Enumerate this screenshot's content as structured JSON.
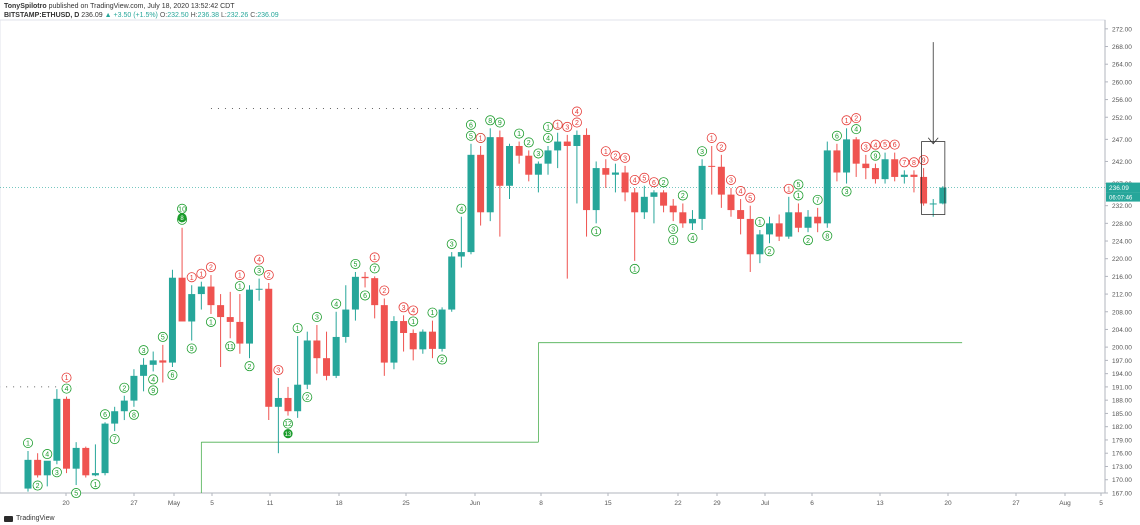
{
  "header": {
    "author": "TonySpilotro",
    "published": "published on TradingView.com, July 18, 2020 13:52:42 CDT",
    "symbol": "BITSTAMP:ETHUSD, D",
    "last": "236.09",
    "change": "+3.50 (+1.5%)",
    "o_label": "O:",
    "o_val": "232.50",
    "h_label": "H:",
    "h_val": "236.38",
    "l_label": "L:",
    "l_val": "232.26",
    "c_label": "C:",
    "c_val": "236.09"
  },
  "footer": {
    "brand": "TradingView"
  },
  "colors": {
    "up": "#26a69a",
    "down": "#ef5350",
    "buy_setup": "#1b9c2c",
    "sell_setup": "#e53935",
    "line": "#4caf50"
  },
  "chart_data": {
    "type": "candlestick",
    "title": "BITSTAMP:ETHUSD, D",
    "ylim": [
      167,
      274
    ],
    "y_ticks": [
      "272.00",
      "268.00",
      "264.00",
      "260.00",
      "256.00",
      "252.00",
      "247.00",
      "242.00",
      "237.00",
      "232.00",
      "228.00",
      "224.00",
      "220.00",
      "216.00",
      "212.00",
      "208.00",
      "204.00",
      "200.00",
      "197.00",
      "194.00",
      "191.00",
      "188.00",
      "185.00",
      "182.00",
      "179.00",
      "176.00",
      "173.00",
      "170.00",
      "167.00"
    ],
    "x_ticks": [
      "20",
      "27",
      "May",
      "5",
      "11",
      "18",
      "25",
      "Jun",
      "8",
      "15",
      "22",
      "29",
      "Jul",
      "6",
      "13",
      "20",
      "27",
      "Aug",
      "5"
    ],
    "price_labels": {
      "last": "236.09",
      "countdown": "06:07:46"
    },
    "candles": [
      {
        "o": 168.0,
        "h": 176.5,
        "l": 167.3,
        "c": 174.5
      },
      {
        "o": 174.5,
        "h": 176.0,
        "l": 170.5,
        "c": 171.0
      },
      {
        "o": 171.0,
        "h": 174.0,
        "l": 168.5,
        "c": 174.3
      },
      {
        "o": 174.3,
        "h": 190.5,
        "l": 173.5,
        "c": 188.3
      },
      {
        "o": 188.3,
        "h": 188.8,
        "l": 171.5,
        "c": 172.5
      },
      {
        "o": 172.5,
        "h": 178.5,
        "l": 168.8,
        "c": 177.2
      },
      {
        "o": 177.2,
        "h": 177.5,
        "l": 170.5,
        "c": 171.0
      },
      {
        "o": 171.0,
        "h": 178.0,
        "l": 170.8,
        "c": 171.5
      },
      {
        "o": 171.5,
        "h": 183.0,
        "l": 171.0,
        "c": 182.7
      },
      {
        "o": 182.7,
        "h": 186.5,
        "l": 181.0,
        "c": 185.5
      },
      {
        "o": 185.5,
        "h": 189.0,
        "l": 183.5,
        "c": 187.9
      },
      {
        "o": 187.9,
        "h": 195.0,
        "l": 186.5,
        "c": 193.5
      },
      {
        "o": 193.5,
        "h": 197.5,
        "l": 190.0,
        "c": 196.0
      },
      {
        "o": 196.0,
        "h": 199.0,
        "l": 194.5,
        "c": 197.0
      },
      {
        "o": 197.0,
        "h": 200.5,
        "l": 192.0,
        "c": 196.5
      },
      {
        "o": 196.5,
        "h": 217.5,
        "l": 195.5,
        "c": 215.7
      },
      {
        "o": 215.7,
        "h": 227.0,
        "l": 206.5,
        "c": 205.8
      },
      {
        "o": 205.8,
        "h": 214.0,
        "l": 201.5,
        "c": 212.0
      },
      {
        "o": 212.0,
        "h": 214.8,
        "l": 208.5,
        "c": 213.7
      },
      {
        "o": 213.7,
        "h": 216.3,
        "l": 207.5,
        "c": 209.5
      },
      {
        "o": 209.5,
        "h": 212.0,
        "l": 195.5,
        "c": 206.8
      },
      {
        "o": 206.8,
        "h": 212.5,
        "l": 202.0,
        "c": 205.7
      },
      {
        "o": 205.7,
        "h": 212.0,
        "l": 198.5,
        "c": 200.8
      },
      {
        "o": 200.8,
        "h": 214.0,
        "l": 197.5,
        "c": 213.0
      },
      {
        "o": 213.0,
        "h": 215.5,
        "l": 210.5,
        "c": 213.2
      },
      {
        "o": 213.2,
        "h": 214.5,
        "l": 183.5,
        "c": 186.5
      },
      {
        "o": 186.5,
        "h": 193.0,
        "l": 176.0,
        "c": 188.5
      },
      {
        "o": 188.5,
        "h": 191.0,
        "l": 184.5,
        "c": 185.5
      },
      {
        "o": 185.5,
        "h": 202.5,
        "l": 184.0,
        "c": 191.5
      },
      {
        "o": 191.5,
        "h": 203.5,
        "l": 190.5,
        "c": 201.5
      },
      {
        "o": 201.5,
        "h": 205.0,
        "l": 194.0,
        "c": 197.5
      },
      {
        "o": 197.5,
        "h": 203.5,
        "l": 192.5,
        "c": 193.5
      },
      {
        "o": 193.5,
        "h": 208.0,
        "l": 193.0,
        "c": 202.3
      },
      {
        "o": 202.3,
        "h": 214.0,
        "l": 201.0,
        "c": 208.5
      },
      {
        "o": 208.5,
        "h": 217.0,
        "l": 206.0,
        "c": 215.9
      },
      {
        "o": 215.9,
        "h": 217.0,
        "l": 213.5,
        "c": 215.6
      },
      {
        "o": 215.6,
        "h": 216.0,
        "l": 206.5,
        "c": 209.5
      },
      {
        "o": 209.5,
        "h": 211.0,
        "l": 193.5,
        "c": 196.5
      },
      {
        "o": 196.5,
        "h": 207.0,
        "l": 195.0,
        "c": 205.9
      },
      {
        "o": 205.9,
        "h": 207.2,
        "l": 199.0,
        "c": 203.2
      },
      {
        "o": 203.2,
        "h": 204.0,
        "l": 197.0,
        "c": 199.5
      },
      {
        "o": 199.5,
        "h": 204.0,
        "l": 198.5,
        "c": 203.5
      },
      {
        "o": 203.5,
        "h": 206.0,
        "l": 197.5,
        "c": 199.6
      },
      {
        "o": 199.6,
        "h": 209.0,
        "l": 199.0,
        "c": 208.5
      },
      {
        "o": 208.5,
        "h": 221.5,
        "l": 208.0,
        "c": 220.5
      },
      {
        "o": 220.5,
        "h": 229.5,
        "l": 218.0,
        "c": 221.5
      },
      {
        "o": 221.5,
        "h": 246.0,
        "l": 221.0,
        "c": 243.5
      },
      {
        "o": 243.5,
        "h": 245.5,
        "l": 227.5,
        "c": 230.5
      },
      {
        "o": 230.5,
        "h": 249.5,
        "l": 228.5,
        "c": 247.5
      },
      {
        "o": 247.5,
        "h": 249.0,
        "l": 225.0,
        "c": 236.5
      },
      {
        "o": 236.5,
        "h": 246.0,
        "l": 233.5,
        "c": 245.5
      },
      {
        "o": 245.5,
        "h": 246.5,
        "l": 241.5,
        "c": 243.3
      },
      {
        "o": 243.3,
        "h": 244.5,
        "l": 237.5,
        "c": 239.0
      },
      {
        "o": 239.0,
        "h": 242.0,
        "l": 235.0,
        "c": 241.5
      },
      {
        "o": 241.5,
        "h": 245.5,
        "l": 239.0,
        "c": 244.5
      },
      {
        "o": 244.5,
        "h": 248.5,
        "l": 240.5,
        "c": 246.5
      },
      {
        "o": 246.5,
        "h": 248.0,
        "l": 215.5,
        "c": 245.5
      },
      {
        "o": 245.5,
        "h": 249.0,
        "l": 232.5,
        "c": 248.0
      },
      {
        "o": 248.0,
        "h": 249.5,
        "l": 225.0,
        "c": 231.0
      },
      {
        "o": 231.0,
        "h": 242.0,
        "l": 228.0,
        "c": 240.5
      },
      {
        "o": 240.5,
        "h": 242.5,
        "l": 236.0,
        "c": 239.0
      },
      {
        "o": 239.0,
        "h": 241.5,
        "l": 235.0,
        "c": 239.5
      },
      {
        "o": 239.5,
        "h": 241.0,
        "l": 233.0,
        "c": 235.0
      },
      {
        "o": 235.0,
        "h": 236.0,
        "l": 219.5,
        "c": 230.5
      },
      {
        "o": 230.5,
        "h": 236.5,
        "l": 229.0,
        "c": 234.0
      },
      {
        "o": 234.0,
        "h": 235.5,
        "l": 228.0,
        "c": 235.0
      },
      {
        "o": 235.0,
        "h": 235.5,
        "l": 230.5,
        "c": 232.0
      },
      {
        "o": 232.0,
        "h": 233.5,
        "l": 228.5,
        "c": 230.5
      },
      {
        "o": 230.5,
        "h": 232.5,
        "l": 227.0,
        "c": 228.0
      },
      {
        "o": 228.0,
        "h": 231.0,
        "l": 226.5,
        "c": 229.0
      },
      {
        "o": 229.0,
        "h": 242.5,
        "l": 226.5,
        "c": 241.0
      },
      {
        "o": 241.0,
        "h": 245.5,
        "l": 234.5,
        "c": 240.8
      },
      {
        "o": 240.8,
        "h": 243.5,
        "l": 231.5,
        "c": 234.5
      },
      {
        "o": 234.5,
        "h": 236.0,
        "l": 229.5,
        "c": 231.0
      },
      {
        "o": 231.0,
        "h": 233.5,
        "l": 225.5,
        "c": 229.0
      },
      {
        "o": 229.0,
        "h": 232.0,
        "l": 217.0,
        "c": 221.0
      },
      {
        "o": 221.0,
        "h": 226.5,
        "l": 219.0,
        "c": 225.5
      },
      {
        "o": 225.5,
        "h": 229.5,
        "l": 223.5,
        "c": 228.0
      },
      {
        "o": 228.0,
        "h": 230.0,
        "l": 224.0,
        "c": 225.0
      },
      {
        "o": 225.0,
        "h": 234.0,
        "l": 224.5,
        "c": 230.5
      },
      {
        "o": 230.5,
        "h": 232.5,
        "l": 226.0,
        "c": 227.0
      },
      {
        "o": 227.0,
        "h": 231.0,
        "l": 226.0,
        "c": 229.5
      },
      {
        "o": 229.5,
        "h": 231.5,
        "l": 226.0,
        "c": 228.0
      },
      {
        "o": 228.0,
        "h": 246.5,
        "l": 227.0,
        "c": 244.5
      },
      {
        "o": 244.5,
        "h": 246.0,
        "l": 237.5,
        "c": 239.5
      },
      {
        "o": 239.5,
        "h": 249.5,
        "l": 237.0,
        "c": 247.0
      },
      {
        "o": 247.0,
        "h": 247.5,
        "l": 238.5,
        "c": 241.5
      },
      {
        "o": 241.5,
        "h": 243.5,
        "l": 238.0,
        "c": 240.5
      },
      {
        "o": 240.5,
        "h": 241.5,
        "l": 237.0,
        "c": 238.0
      },
      {
        "o": 238.0,
        "h": 244.0,
        "l": 237.0,
        "c": 242.5
      },
      {
        "o": 242.5,
        "h": 244.0,
        "l": 237.5,
        "c": 238.5
      },
      {
        "o": 238.5,
        "h": 240.0,
        "l": 237.0,
        "c": 239.0
      },
      {
        "o": 239.0,
        "h": 240.0,
        "l": 235.0,
        "c": 238.5
      },
      {
        "o": 238.5,
        "h": 240.5,
        "l": 232.0,
        "c": 232.5
      },
      {
        "o": 232.5,
        "h": 233.5,
        "l": 229.5,
        "c": 232.5
      },
      {
        "o": 232.5,
        "h": 236.4,
        "l": 232.3,
        "c": 236.1
      }
    ],
    "td_sequential": {
      "buy": [
        {
          "i": 0,
          "label": "1"
        },
        {
          "i": 1,
          "label": "2"
        },
        {
          "i": 2,
          "label": "4"
        },
        {
          "i": 3,
          "label": "3"
        },
        {
          "i": 4,
          "label": "4"
        },
        {
          "i": 5,
          "label": "5"
        },
        {
          "i": 7,
          "label": "1"
        },
        {
          "i": 8,
          "label": "6"
        },
        {
          "i": 9,
          "label": "7"
        },
        {
          "i": 10,
          "label": "2"
        },
        {
          "i": 11,
          "label": "8"
        },
        {
          "i": 12,
          "label": "3"
        },
        {
          "i": 13,
          "label": "4"
        },
        {
          "i": 14,
          "label": "5"
        },
        {
          "i": 13,
          "label": "9"
        },
        {
          "i": 15,
          "label": "6"
        },
        {
          "i": 16,
          "label": "7"
        },
        {
          "i": 16,
          "label": "10"
        },
        {
          "i": 17,
          "label": "9"
        },
        {
          "i": 19,
          "label": "1"
        },
        {
          "i": 21,
          "label": "11"
        },
        {
          "i": 22,
          "label": "1"
        },
        {
          "i": 23,
          "label": "2"
        },
        {
          "i": 24,
          "label": "3"
        },
        {
          "i": 27,
          "label": "12"
        },
        {
          "i": 28,
          "label": "1"
        },
        {
          "i": 29,
          "label": "2"
        },
        {
          "i": 30,
          "label": "3"
        },
        {
          "i": 32,
          "label": "4"
        },
        {
          "i": 34,
          "label": "5"
        },
        {
          "i": 35,
          "label": "6"
        },
        {
          "i": 36,
          "label": "7"
        },
        {
          "i": 40,
          "label": "1"
        },
        {
          "i": 42,
          "label": "1"
        },
        {
          "i": 43,
          "label": "2"
        },
        {
          "i": 44,
          "label": "3"
        },
        {
          "i": 45,
          "label": "4"
        },
        {
          "i": 46,
          "label": "5"
        },
        {
          "i": 46,
          "label": "6"
        },
        {
          "i": 47,
          "label": "7"
        },
        {
          "i": 48,
          "label": "8"
        },
        {
          "i": 49,
          "label": "9"
        },
        {
          "i": 51,
          "label": "1"
        },
        {
          "i": 52,
          "label": "2"
        },
        {
          "i": 53,
          "label": "3"
        },
        {
          "i": 54,
          "label": "4"
        },
        {
          "i": 54,
          "label": "1"
        },
        {
          "i": 55,
          "label": "2"
        },
        {
          "i": 59,
          "label": "1"
        },
        {
          "i": 63,
          "label": "1"
        },
        {
          "i": 66,
          "label": "2"
        },
        {
          "i": 67,
          "label": "3"
        },
        {
          "i": 67,
          "label": "1"
        },
        {
          "i": 68,
          "label": "2"
        },
        {
          "i": 69,
          "label": "4"
        },
        {
          "i": 70,
          "label": "3"
        },
        {
          "i": 76,
          "label": "1"
        },
        {
          "i": 77,
          "label": "2"
        },
        {
          "i": 80,
          "label": "1"
        },
        {
          "i": 81,
          "label": "2"
        },
        {
          "i": 82,
          "label": "7"
        },
        {
          "i": 83,
          "label": "8"
        },
        {
          "i": 85,
          "label": "3"
        },
        {
          "i": 86,
          "label": "4"
        },
        {
          "i": 80,
          "label": "5"
        },
        {
          "i": 84,
          "label": "6"
        },
        {
          "i": 88,
          "label": "9"
        }
      ],
      "sell": [
        {
          "i": 4,
          "label": "1"
        },
        {
          "i": 17,
          "label": "1"
        },
        {
          "i": 18,
          "label": "1"
        },
        {
          "i": 19,
          "label": "2"
        },
        {
          "i": 22,
          "label": "1"
        },
        {
          "i": 25,
          "label": "2"
        },
        {
          "i": 26,
          "label": "3"
        },
        {
          "i": 24,
          "label": "4"
        },
        {
          "i": 36,
          "label": "1"
        },
        {
          "i": 37,
          "label": "2"
        },
        {
          "i": 39,
          "label": "3"
        },
        {
          "i": 40,
          "label": "4"
        },
        {
          "i": 47,
          "label": "1"
        },
        {
          "i": 55,
          "label": "1"
        },
        {
          "i": 57,
          "label": "2"
        },
        {
          "i": 56,
          "label": "3"
        },
        {
          "i": 57,
          "label": "4"
        },
        {
          "i": 60,
          "label": "1"
        },
        {
          "i": 61,
          "label": "2"
        },
        {
          "i": 62,
          "label": "3"
        },
        {
          "i": 63,
          "label": "4"
        },
        {
          "i": 64,
          "label": "5"
        },
        {
          "i": 65,
          "label": "6"
        },
        {
          "i": 71,
          "label": "1"
        },
        {
          "i": 72,
          "label": "2"
        },
        {
          "i": 73,
          "label": "3"
        },
        {
          "i": 74,
          "label": "4"
        },
        {
          "i": 75,
          "label": "5"
        },
        {
          "i": 79,
          "label": "1"
        },
        {
          "i": 85,
          "label": "1"
        },
        {
          "i": 86,
          "label": "2"
        },
        {
          "i": 87,
          "label": "3"
        },
        {
          "i": 88,
          "label": "4"
        },
        {
          "i": 89,
          "label": "5"
        },
        {
          "i": 90,
          "label": "6"
        },
        {
          "i": 91,
          "label": "7"
        },
        {
          "i": 92,
          "label": "8"
        },
        {
          "i": 93,
          "label": "9"
        }
      ],
      "countdown_marks": [
        {
          "i": 16,
          "label": "8"
        },
        {
          "i": 27,
          "label": "13"
        }
      ]
    },
    "tdst_lines": [
      {
        "from": -3,
        "to": 5,
        "value": 191,
        "style": "dotted"
      },
      {
        "from": 19,
        "to": 47,
        "value": 254,
        "style": "dotted"
      },
      {
        "from": 18,
        "to": 53,
        "value": 178.5,
        "style": "solid"
      },
      {
        "from": 53,
        "to": 97,
        "value": 201,
        "style": "solid"
      }
    ],
    "annotations": [
      {
        "type": "arrow",
        "i": 94,
        "y_from": 269,
        "y_to": 246
      },
      {
        "type": "box",
        "i_from": 93,
        "i_to": 95,
        "y_top": 246.5,
        "y_bottom": 230
      }
    ]
  }
}
